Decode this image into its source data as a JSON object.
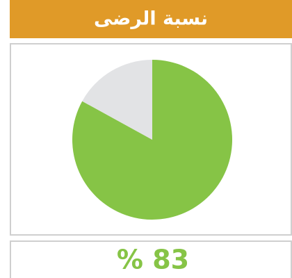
{
  "chart_data": {
    "type": "pie",
    "title": "نسبة الرضى",
    "values": [
      83,
      17
    ],
    "value_labels": [
      "% 83",
      null
    ],
    "colors": [
      "#86c446",
      "#e2e3e5"
    ]
  }
}
